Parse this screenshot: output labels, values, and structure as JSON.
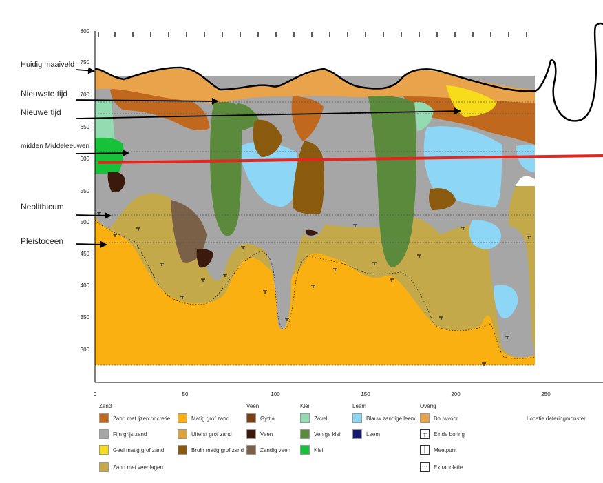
{
  "y_axis": {
    "ticks": [
      "800",
      "750",
      "700",
      "650",
      "600",
      "550",
      "500",
      "450",
      "400",
      "350",
      "300"
    ]
  },
  "x_axis": {
    "ticks": [
      "0",
      "50",
      "100",
      "150",
      "200",
      "250"
    ]
  },
  "annotations": [
    {
      "label": "Huidig maaiveld"
    },
    {
      "label": "Nieuwste tijd"
    },
    {
      "label": "Nieuwe tijd"
    },
    {
      "label": "midden Middeleeuwen"
    },
    {
      "label": "Neolithicum"
    },
    {
      "label": "Pleistoceen"
    }
  ],
  "legend": {
    "groups": [
      {
        "title": "Zand",
        "items": [
          {
            "label": "Zand met ijzerconcretie",
            "color": "#c0681e"
          },
          {
            "label": "Fijn grijs zand",
            "color": "#a6a6a6"
          },
          {
            "label": "Geel matig grof zand",
            "color": "#f7dc1b"
          },
          {
            "label": "Zand met veenlagen",
            "color": "#c3a94a"
          }
        ]
      },
      {
        "title": "",
        "items": [
          {
            "label": "Matig grof zand",
            "color": "#fbb012"
          },
          {
            "label": "Uiterst grof zand",
            "color": "#dba33c"
          },
          {
            "label": "Bruin matig grof zand",
            "color": "#8a5a0e"
          }
        ]
      },
      {
        "title": "Veen",
        "items": [
          {
            "label": "Gyttja",
            "color": "#7a3f12"
          },
          {
            "label": "Veen",
            "color": "#3b1a0e"
          },
          {
            "label": "Zandig veen",
            "color": "#7b6048"
          }
        ]
      },
      {
        "title": "Klei",
        "items": [
          {
            "label": "Zavel",
            "color": "#93dbb0"
          },
          {
            "label": "Venige klei",
            "color": "#5b8a3c"
          },
          {
            "label": "Klei",
            "color": "#17c23a"
          }
        ]
      },
      {
        "title": "Leem",
        "items": [
          {
            "label": "Blauw zandige leem",
            "color": "#8dd6f5"
          },
          {
            "label": "Leem",
            "color": "#131a6e"
          }
        ]
      },
      {
        "title": "Overig",
        "items": [
          {
            "label": "Bouwvoor",
            "color": "#e9a34a"
          },
          {
            "label": "Einde boring",
            "icon": "end-of-boring-icon"
          },
          {
            "label": "Meetpunt",
            "icon": "measure-point-icon"
          },
          {
            "label": "Extrapolatie",
            "icon": "extrapolation-icon"
          }
        ]
      },
      {
        "title": "",
        "items": [
          {
            "label": "Locatie dateringmonster"
          }
        ]
      }
    ]
  }
}
